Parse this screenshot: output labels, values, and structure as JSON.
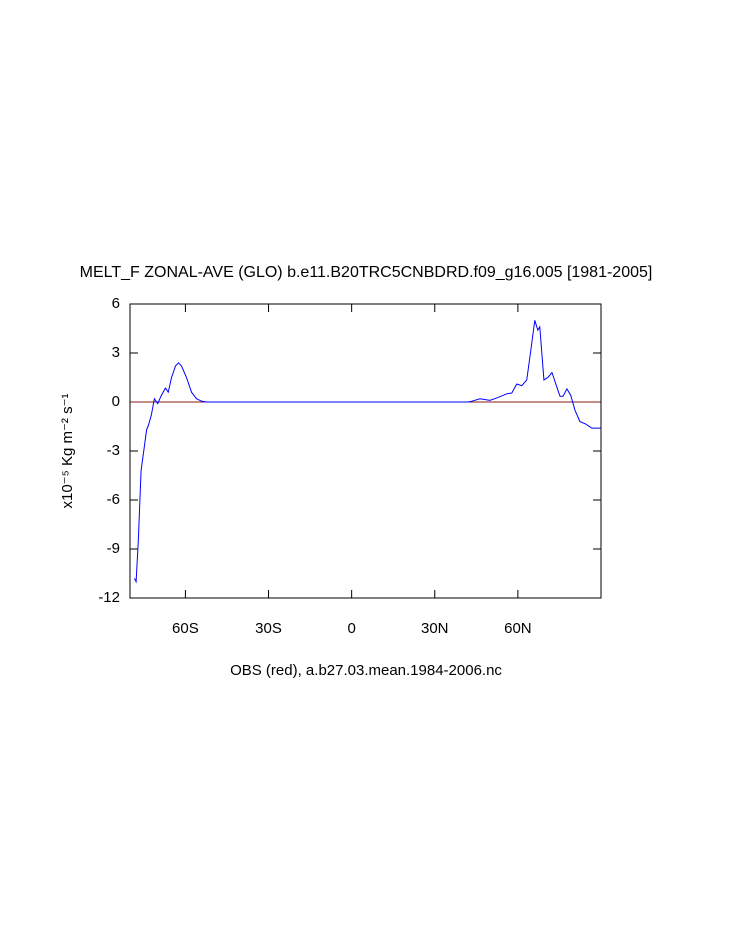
{
  "chart_data": {
    "type": "line",
    "title": "MELT_F ZONAL-AVE (GLO) b.e11.B20TRC5CNBDRD.f09_g16.005 [1981-2005]",
    "x_label": "OBS (red), a.b27.03.mean.1984-2006.nc",
    "y_label": "x10⁻⁵ Kg m⁻² s⁻¹",
    "xlim": [
      -80,
      90
    ],
    "xticks": [
      {
        "value": -60,
        "label": "60S"
      },
      {
        "value": -30,
        "label": "30S"
      },
      0,
      {
        "value": 30,
        "label": "30N"
      },
      {
        "value": 60,
        "label": "60N"
      }
    ],
    "ylim": [
      -12,
      6
    ],
    "yticks": [
      -12,
      -9,
      -6,
      -3,
      0,
      3,
      6
    ],
    "reference_line": {
      "value": 0,
      "color": "#8b1a1a"
    },
    "series": [
      {
        "color": "#0000ff",
        "x": [
          -78.4,
          -77.8,
          -77,
          -76,
          -74,
          -73.3,
          -72.3,
          -71.2,
          -70,
          -68.7,
          -67.2,
          -66.2,
          -65,
          -63.6,
          -62.5,
          -61.4,
          -59.6,
          -57.8,
          -56,
          -54.2,
          -52.4,
          0,
          42,
          43.4,
          46.3,
          49.9,
          52.4,
          56,
          57.8,
          59.6,
          61.4,
          63.2,
          64.7,
          66.1,
          67.2,
          67.9,
          69.4,
          70.8,
          72.3,
          73.7,
          75.2,
          76.3,
          77.7,
          79.1,
          80.6,
          82.4,
          84.5,
          86.7,
          90
        ],
        "values": [
          -10.8,
          -11.0,
          -8.5,
          -4.2,
          -1.7,
          -1.4,
          -0.8,
          0.2,
          -0.1,
          0.4,
          0.85,
          0.6,
          1.5,
          2.2,
          2.4,
          2.2,
          1.5,
          0.6,
          0.2,
          0.05,
          0,
          0,
          0,
          0.05,
          0.2,
          0.1,
          0.25,
          0.5,
          0.55,
          1.1,
          1.0,
          1.35,
          3.2,
          5.0,
          4.4,
          4.6,
          1.35,
          1.5,
          1.8,
          1.1,
          0.35,
          0.35,
          0.8,
          0.4,
          -0.5,
          -1.2,
          -1.35,
          -1.6,
          -1.6
        ]
      }
    ]
  }
}
